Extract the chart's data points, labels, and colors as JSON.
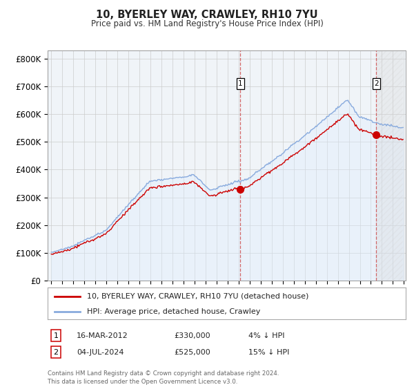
{
  "title": "10, BYERLEY WAY, CRAWLEY, RH10 7YU",
  "subtitle": "Price paid vs. HM Land Registry's House Price Index (HPI)",
  "ylabel_ticks": [
    "£0",
    "£100K",
    "£200K",
    "£300K",
    "£400K",
    "£500K",
    "£600K",
    "£700K",
    "£800K"
  ],
  "ytick_values": [
    0,
    100000,
    200000,
    300000,
    400000,
    500000,
    600000,
    700000,
    800000
  ],
  "ylim": [
    0,
    830000
  ],
  "legend_line1": "10, BYERLEY WAY, CRAWLEY, RH10 7YU (detached house)",
  "legend_line2": "HPI: Average price, detached house, Crawley",
  "annotation1_label": "1",
  "annotation1_date": "16-MAR-2012",
  "annotation1_price": "£330,000",
  "annotation1_hpi": "4% ↓ HPI",
  "annotation2_label": "2",
  "annotation2_date": "04-JUL-2024",
  "annotation2_price": "£525,000",
  "annotation2_hpi": "15% ↓ HPI",
  "footer": "Contains HM Land Registry data © Crown copyright and database right 2024.\nThis data is licensed under the Open Government Licence v3.0.",
  "red_color": "#cc0000",
  "blue_color": "#88aadd",
  "blue_fill": "#ddeeff",
  "grid_color": "#cccccc",
  "background_color": "#ffffff",
  "plot_background": "#f0f4f8",
  "sale1_price": 330000,
  "sale2_price": 525000
}
